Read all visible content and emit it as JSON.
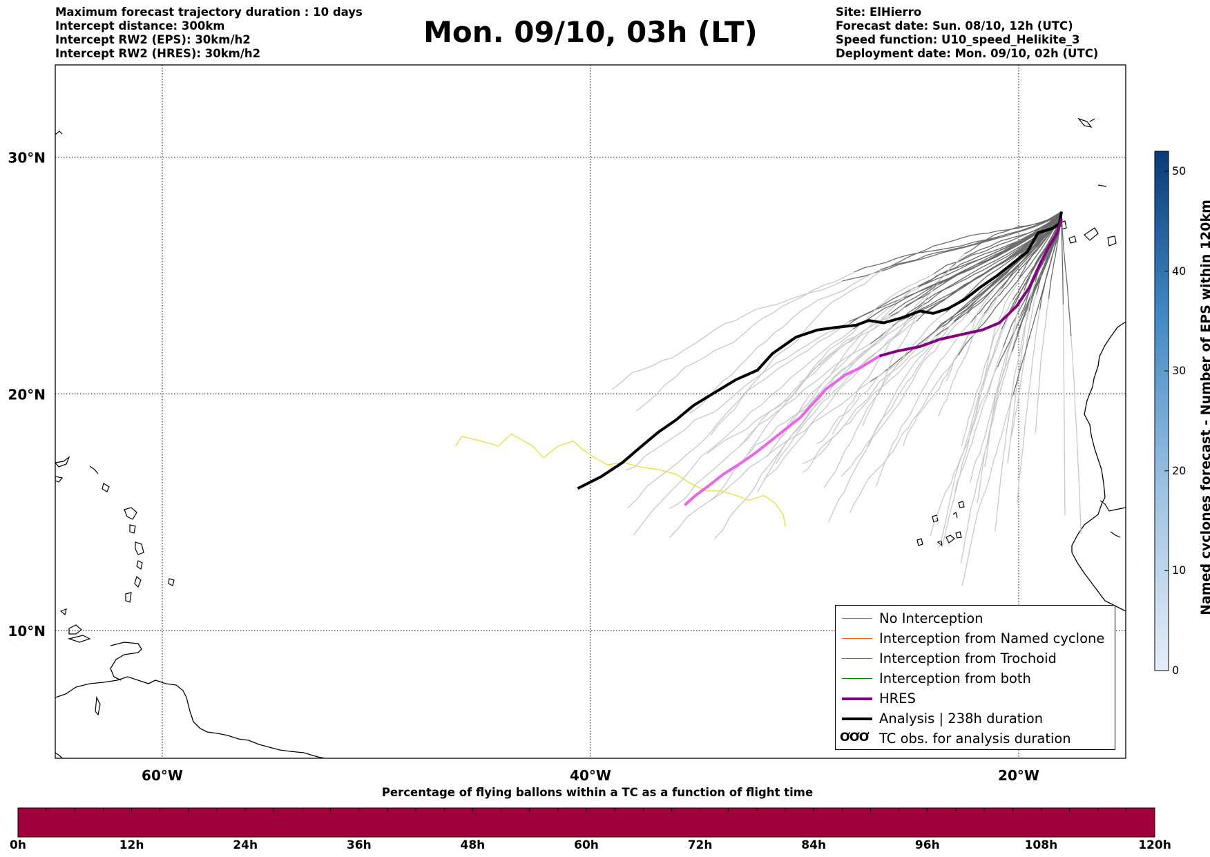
{
  "header": {
    "left_lines": [
      "Maximum forecast trajectory duration : 10 days",
      "Intercept distance: 300km",
      "Intercept RW2 (EPS):  30km/h2",
      "Intercept RW2 (HRES): 30km/h2"
    ],
    "right_lines": [
      "Site: ElHierro",
      "Forecast date: Sun. 08/10, 12h (UTC)",
      "Speed function: U10_speed_Helikite_3",
      "Deployment date: Mon. 09/10, 02h (UTC)"
    ],
    "title": "Mon. 09/10, 03h (LT)"
  },
  "map": {
    "lon_range": [
      -65,
      -15
    ],
    "lat_range": [
      4.6,
      33.9
    ],
    "lon_ticks": [
      {
        "lon": -60,
        "label": "60°W"
      },
      {
        "lon": -40,
        "label": "40°W"
      },
      {
        "lon": -20,
        "label": "20°W"
      }
    ],
    "lat_ticks": [
      {
        "lat": 30,
        "label": "30°N"
      },
      {
        "lat": 20,
        "label": "20°N"
      },
      {
        "lat": 10,
        "label": "10°N"
      }
    ],
    "gridlines": true,
    "start_point": {
      "lon": -18.0,
      "lat": 27.7
    },
    "colors": {
      "eps_light": "#c8c8c8",
      "eps_dark": "#6a6a6a",
      "hres": "#800080",
      "hres_light": "#e866e8",
      "analysis": "#000000",
      "tc_obs": "#e8e04a",
      "coast": "#000000"
    },
    "analysis_track": [
      [
        -18.0,
        27.7
      ],
      [
        -18.1,
        27.2
      ],
      [
        -18.4,
        27.0
      ],
      [
        -19.1,
        26.8
      ],
      [
        -19.6,
        26.0
      ],
      [
        -20.3,
        25.5
      ],
      [
        -21.0,
        25.0
      ],
      [
        -21.8,
        24.5
      ],
      [
        -22.5,
        24.0
      ],
      [
        -23.3,
        23.6
      ],
      [
        -24.0,
        23.4
      ],
      [
        -24.6,
        23.5
      ],
      [
        -25.5,
        23.2
      ],
      [
        -26.3,
        23.0
      ],
      [
        -27.0,
        23.1
      ],
      [
        -27.6,
        22.9
      ],
      [
        -28.6,
        22.8
      ],
      [
        -29.4,
        22.7
      ],
      [
        -30.4,
        22.4
      ],
      [
        -31.5,
        21.7
      ],
      [
        -32.2,
        21.0
      ],
      [
        -33.2,
        20.6
      ],
      [
        -34.3,
        20.0
      ],
      [
        -35.2,
        19.5
      ],
      [
        -36.0,
        18.9
      ],
      [
        -36.8,
        18.4
      ],
      [
        -37.6,
        17.8
      ],
      [
        -38.5,
        17.1
      ],
      [
        -39.5,
        16.5
      ],
      [
        -40.6,
        16.0
      ]
    ],
    "hres_track": [
      [
        -18.0,
        27.4
      ],
      [
        -18.2,
        26.8
      ],
      [
        -18.6,
        26.2
      ],
      [
        -19.0,
        25.5
      ],
      [
        -19.5,
        24.5
      ],
      [
        -20.1,
        23.7
      ],
      [
        -20.9,
        23.0
      ],
      [
        -21.7,
        22.7
      ],
      [
        -22.7,
        22.5
      ],
      [
        -23.7,
        22.3
      ],
      [
        -24.6,
        22.0
      ],
      [
        -25.7,
        21.8
      ],
      [
        -26.5,
        21.6
      ]
    ],
    "hres_light_track": [
      [
        -26.5,
        21.6
      ],
      [
        -27.4,
        21.1
      ],
      [
        -28.1,
        20.8
      ],
      [
        -29.0,
        20.2
      ],
      [
        -29.6,
        19.6
      ],
      [
        -30.2,
        19.0
      ],
      [
        -30.9,
        18.5
      ],
      [
        -31.6,
        18.0
      ],
      [
        -32.3,
        17.5
      ],
      [
        -33.1,
        17.0
      ],
      [
        -33.8,
        16.6
      ],
      [
        -34.5,
        16.1
      ],
      [
        -35.1,
        15.7
      ],
      [
        -35.6,
        15.3
      ]
    ],
    "tc_obs_track": [
      [
        -46.3,
        17.8
      ],
      [
        -46.0,
        18.2
      ],
      [
        -45.1,
        18.0
      ],
      [
        -44.3,
        17.8
      ],
      [
        -43.7,
        18.3
      ],
      [
        -42.7,
        17.8
      ],
      [
        -42.2,
        17.3
      ],
      [
        -41.5,
        17.8
      ],
      [
        -40.8,
        18.0
      ],
      [
        -40.3,
        17.6
      ],
      [
        -39.8,
        17.3
      ],
      [
        -39.2,
        17.0
      ],
      [
        -38.5,
        17.1
      ],
      [
        -37.6,
        16.9
      ],
      [
        -36.8,
        16.8
      ],
      [
        -36.0,
        16.6
      ],
      [
        -35.3,
        16.2
      ],
      [
        -34.6,
        15.9
      ],
      [
        -33.9,
        15.9
      ],
      [
        -33.2,
        15.7
      ],
      [
        -32.6,
        15.5
      ],
      [
        -31.9,
        15.7
      ],
      [
        -31.4,
        15.4
      ],
      [
        -31.0,
        14.9
      ],
      [
        -30.9,
        14.4
      ]
    ]
  },
  "legend": {
    "items": [
      {
        "label": "No Interception",
        "color": "#7a7a7a",
        "width": 1.2
      },
      {
        "label": "Interception from Named cyclone",
        "color": "#ff5a14",
        "width": 1.2
      },
      {
        "label": "Interception from Trochoid",
        "color": "#808000",
        "width": 1.2
      },
      {
        "label": "Interception from both",
        "color": "#008000",
        "width": 1.2
      },
      {
        "label": "HRES",
        "color": "#800080",
        "width": 4
      },
      {
        "label": "Analysis | 238h duration",
        "color": "#000000",
        "width": 4
      }
    ],
    "tc_symbol": "ƠƠƠ",
    "tc_label": "TC obs. for analysis duration"
  },
  "colorbar_vertical": {
    "label": "Named cyclones forecast - Number of EPS within 120km",
    "min": 0,
    "max": 52,
    "ticks": [
      0,
      10,
      20,
      30,
      40,
      50
    ],
    "color_low": "#e6eef8",
    "color_high": "#0a3a78"
  },
  "colorbar_horizontal": {
    "title": "Percentage of flying ballons within a TC as a function of flight time",
    "fill_color": "#a0003c",
    "ticks": [
      "0h",
      "12h",
      "24h",
      "36h",
      "48h",
      "60h",
      "72h",
      "84h",
      "96h",
      "108h",
      "120h"
    ]
  }
}
